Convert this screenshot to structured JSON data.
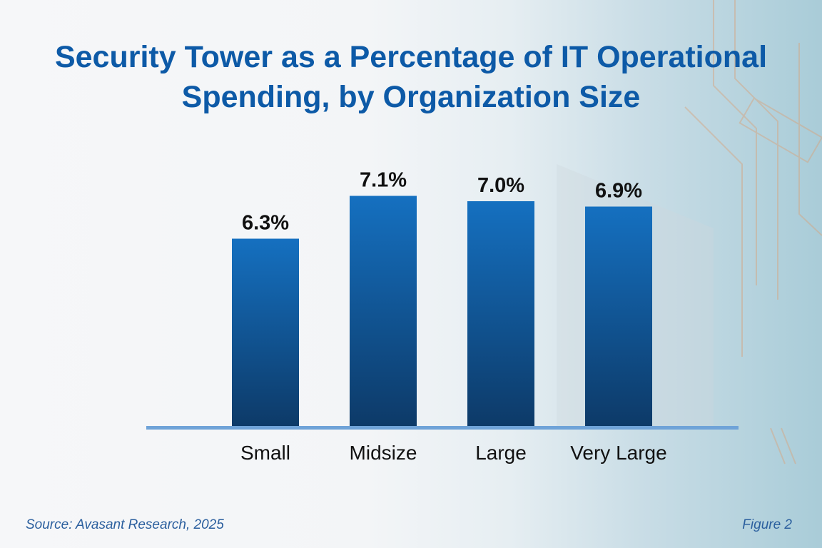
{
  "colors": {
    "title": "#0d5aa7",
    "bar_top": "#1570c0",
    "bar_bottom": "#0d3a68",
    "axis": "#6fa3d8",
    "caption": "#2b5f9e"
  },
  "footer": {
    "source": "Source: Avasant Research, 2025",
    "figure": "Figure 2"
  },
  "chart_data": {
    "type": "bar",
    "title_line1": "Security Tower as a Percentage of IT Operational",
    "title_line2": "Spending, by Organization Size",
    "categories": [
      "Small",
      "Midsize",
      "Large",
      "Very Large"
    ],
    "values": [
      6.3,
      7.1,
      7.0,
      6.9
    ],
    "data_labels": [
      "6.3%",
      "7.1%",
      "7.0%",
      "6.9%"
    ],
    "xlabel": "",
    "ylabel": "",
    "ylim": [
      2.8,
      8.8
    ],
    "grid": false,
    "legend": "none"
  }
}
